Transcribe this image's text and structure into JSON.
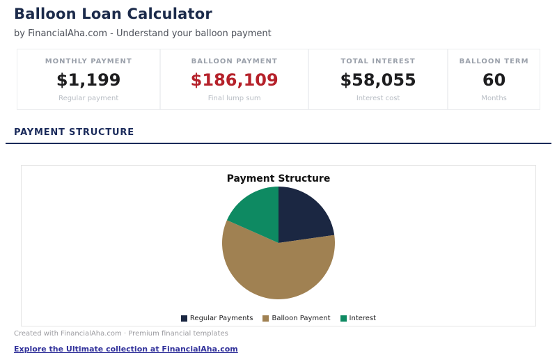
{
  "header": {
    "title": "Balloon Loan Calculator",
    "subtitle": "by FinancialAha.com - Understand your balloon payment"
  },
  "stats": [
    {
      "label": "MONTHLY PAYMENT",
      "value": "$1,199",
      "sublabel": "Regular payment"
    },
    {
      "label": "BALLOON PAYMENT",
      "value": "$186,109",
      "sublabel": "Final lump sum"
    },
    {
      "label": "TOTAL INTEREST",
      "value": "$58,055",
      "sublabel": "Interest cost"
    },
    {
      "label": "BALLOON TERM",
      "value": "60",
      "sublabel": "Months"
    }
  ],
  "colors": {
    "accent_navy": "#1a2a5a",
    "alert_red": "#b5212a",
    "link_blue": "#32329b"
  },
  "section": {
    "title": "PAYMENT STRUCTURE"
  },
  "chart_data": {
    "type": "pie",
    "title": "Payment Structure",
    "slices": [
      {
        "label": "Regular Payments",
        "value": 71940,
        "percent": 22.8,
        "color": "#1b2742"
      },
      {
        "label": "Balloon Payment",
        "value": 186109,
        "percent": 58.9,
        "color": "#a08152"
      },
      {
        "label": "Interest",
        "value": 58055,
        "percent": 18.3,
        "color": "#0e8a62"
      }
    ],
    "start_angle_deg": -90,
    "direction": "clockwise",
    "legend_position": "bottom"
  },
  "footer": {
    "credit": "Created with FinancialAha.com · Premium financial templates",
    "link": "Explore the Ultimate collection at FinancialAha.com"
  }
}
